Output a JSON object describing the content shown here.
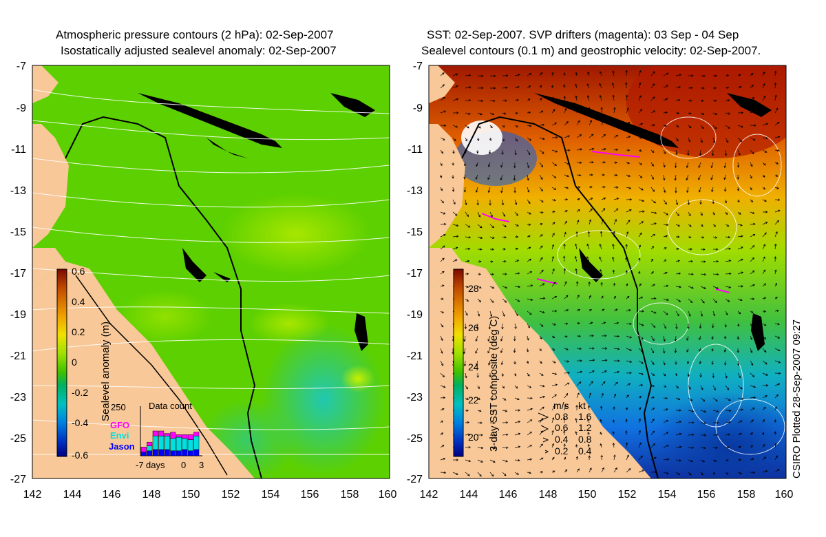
{
  "left_panel": {
    "title_line1": "Atmospheric pressure contours (2 hPa): 02-Sep-2007",
    "title_line2": "Isostatically adjusted sealevel anomaly: 02-Sep-2007",
    "colorbar_label": "Sealevel anomaly (m)",
    "colorbar_ticks": [
      "0.6",
      "0.4",
      "0.2",
      "0",
      "-0.2",
      "-0.4",
      "-0.6"
    ],
    "colorbar_colors": [
      "#7a0a00",
      "#c04a00",
      "#f0a000",
      "#f0e000",
      "#a0e000",
      "#40c000",
      "#00b060",
      "#00c0c0",
      "#0080e0",
      "#0030c0",
      "#000080"
    ],
    "inset": {
      "title": "Data count",
      "ymax_label": "250",
      "legend": [
        {
          "label": "GFO",
          "color": "#ff00ff"
        },
        {
          "label": "Envi",
          "color": "#00e0e0"
        },
        {
          "label": "Jason",
          "color": "#0000ff"
        }
      ],
      "x_labels": [
        "-7",
        "days",
        "0",
        "3"
      ],
      "bars": [
        {
          "jason": 15,
          "envi": 0,
          "gfo": 20
        },
        {
          "jason": 20,
          "envi": 20,
          "gfo": 15
        },
        {
          "jason": 25,
          "envi": 55,
          "gfo": 20
        },
        {
          "jason": 25,
          "envi": 55,
          "gfo": 20
        },
        {
          "jason": 25,
          "envi": 55,
          "gfo": 10
        },
        {
          "jason": 20,
          "envi": 50,
          "gfo": 25
        },
        {
          "jason": 20,
          "envi": 55,
          "gfo": 10
        },
        {
          "jason": 25,
          "envi": 45,
          "gfo": 15
        },
        {
          "jason": 20,
          "envi": 45,
          "gfo": 20
        },
        {
          "jason": 25,
          "envi": 55,
          "gfo": 15
        }
      ]
    }
  },
  "right_panel": {
    "title_line1": "SST: 02-Sep-2007. SVP drifters (magenta): 03 Sep - 04 Sep",
    "title_line2": "Sealevel contours (0.1 m) and geostrophic velocity: 02-Sep-2007.",
    "colorbar_label": "3-day SST composite (deg C)",
    "colorbar_ticks": [
      "28",
      "26",
      "24",
      "22",
      "20"
    ],
    "colorbar_colors": [
      "#7a0a00",
      "#c04a00",
      "#f0a000",
      "#f0e000",
      "#a0e000",
      "#40c000",
      "#00b060",
      "#00c0c0",
      "#0080e0",
      "#0030c0",
      "#000080"
    ],
    "velocity_legend": {
      "header_ms": "m/s",
      "header_kt": "kt",
      "rows": [
        {
          "ms": "0.8",
          "kt": "1.6"
        },
        {
          "ms": "0.6",
          "kt": "1.2"
        },
        {
          "ms": "0.4",
          "kt": "0.8"
        },
        {
          "ms": "0.2",
          "kt": "0.4"
        }
      ]
    },
    "credit": "CSIRO Plotted 28-Sep-2007 09:27"
  },
  "axes": {
    "lat_labels": [
      "-7",
      "-9",
      "-11",
      "-13",
      "-15",
      "-17",
      "-19",
      "-21",
      "-23",
      "-25",
      "-27"
    ],
    "lon_labels": [
      "142",
      "144",
      "146",
      "148",
      "150",
      "152",
      "154",
      "156",
      "158",
      "160"
    ]
  },
  "colors": {
    "land": "#f8c898",
    "sea_level_base": "#5cd000",
    "sst_warm": "#b02000",
    "sst_cool": "#1060d0"
  }
}
